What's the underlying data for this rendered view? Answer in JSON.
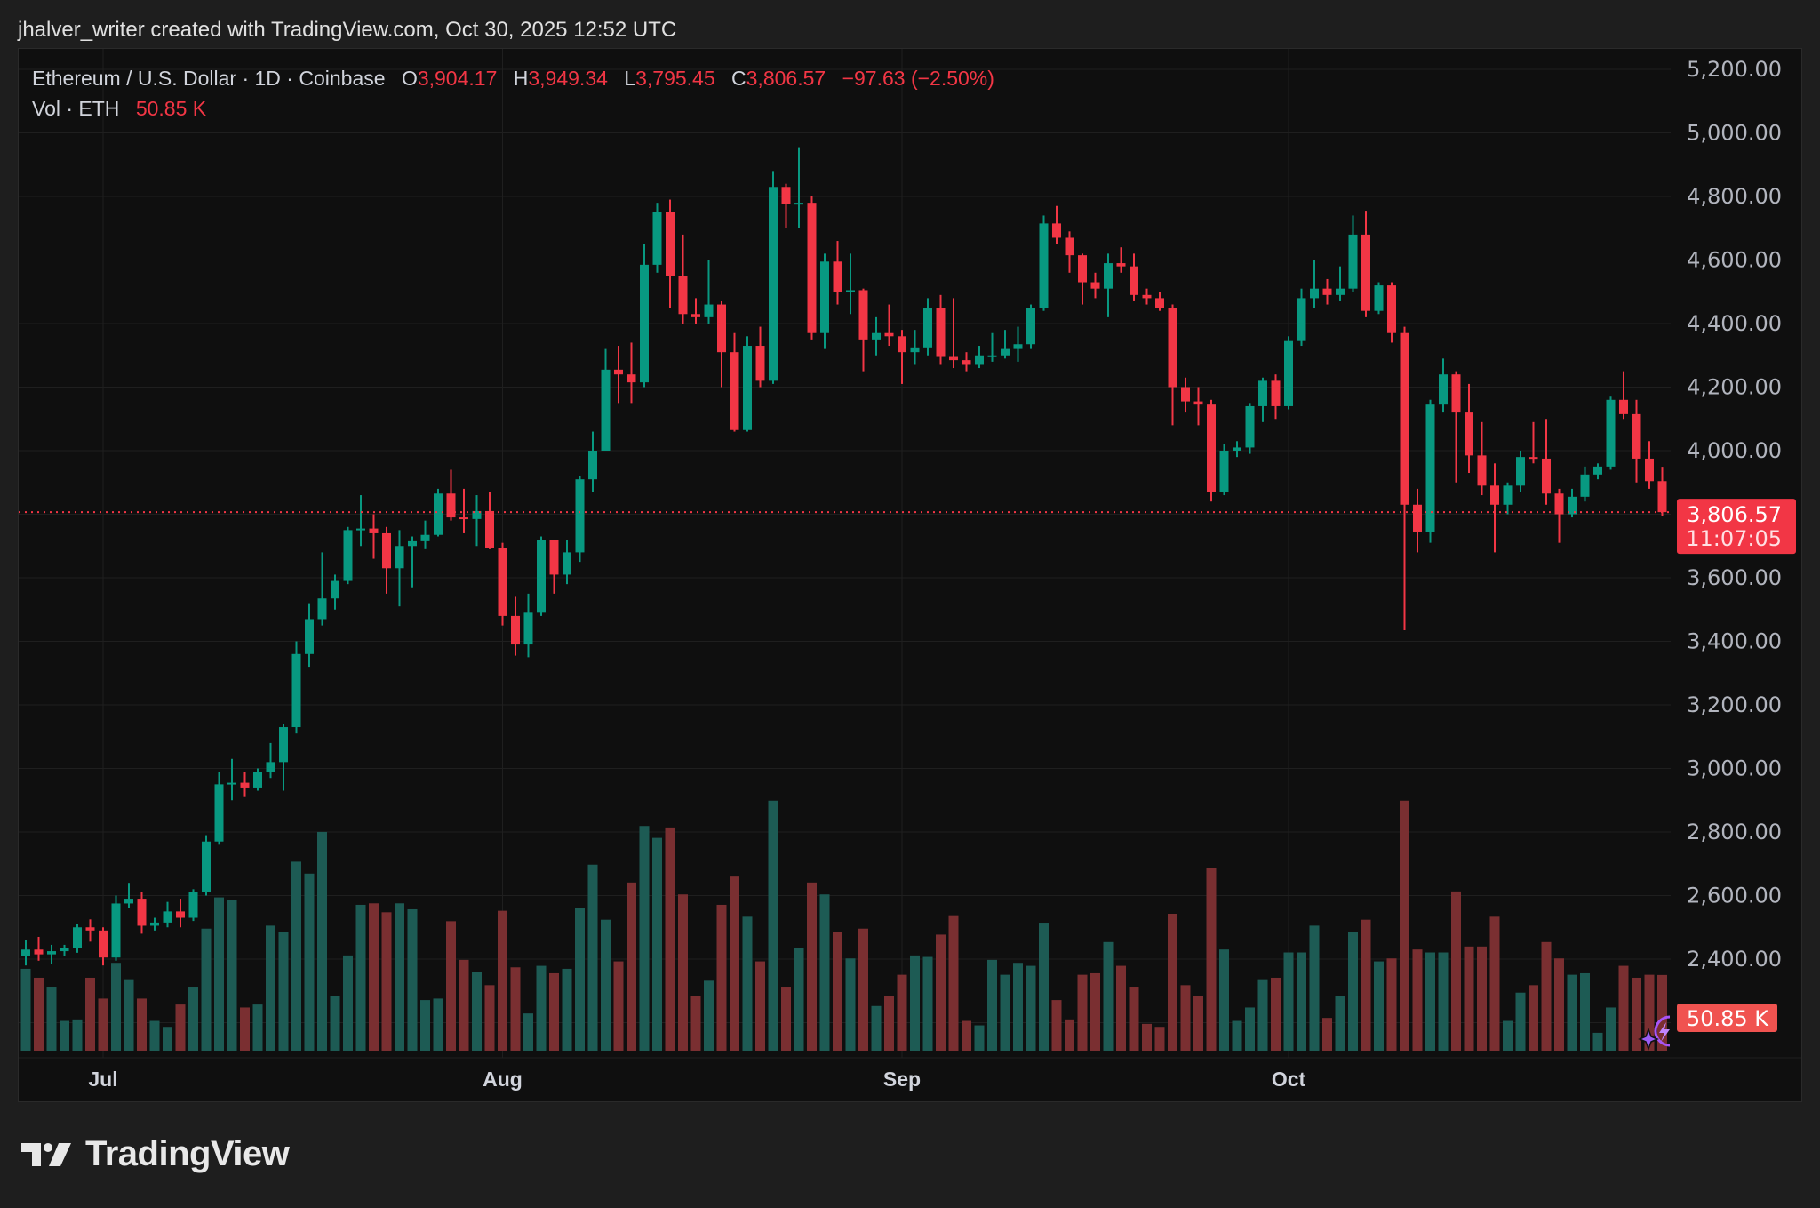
{
  "credit": "jhalver_writer created with TradingView.com, Oct 30, 2025 12:52 UTC",
  "legend": {
    "symbol": "Ethereum / U.S. Dollar · 1D · Coinbase",
    "o_label": "O",
    "o_value": "3,904.17",
    "h_label": "H",
    "h_value": "3,949.34",
    "l_label": "L",
    "l_value": "3,795.45",
    "c_label": "C",
    "c_value": "3,806.57",
    "change": "−97.63 (−2.50%)",
    "vol_label": "Vol · ETH",
    "vol_value": "50.85 K"
  },
  "footer": {
    "brand": "TradingView"
  },
  "colors": {
    "up": "#089981",
    "down": "#f23645",
    "vol_up": "#1d5b54",
    "vol_down": "#7a2f31",
    "background": "#0f0f0f",
    "assistant_icon": "#9b5cf6"
  },
  "chart_data": {
    "type": "candlestick",
    "symbol": "ETH/USD",
    "interval": "1D",
    "ylim": [
      2200,
      5200
    ],
    "y_ticks": [
      2200,
      2400,
      2600,
      2800,
      3000,
      3200,
      3400,
      3600,
      3800,
      4000,
      4200,
      4400,
      4600,
      4800,
      5000,
      5200
    ],
    "x_ticks": [
      {
        "date": "2025-07-01",
        "label": "Jul"
      },
      {
        "date": "2025-08-01",
        "label": "Aug"
      },
      {
        "date": "2025-09-01",
        "label": "Sep"
      },
      {
        "date": "2025-10-01",
        "label": "Oct"
      }
    ],
    "grid": true,
    "last_price": {
      "value": "3,806.57",
      "countdown": "11:07:05"
    },
    "last_volume": "50.85 K",
    "columns": [
      "date",
      "open",
      "high",
      "low",
      "close",
      "volume_k"
    ],
    "candles": [
      [
        "2025-06-25",
        2410,
        2460,
        2380,
        2430,
        55
      ],
      [
        "2025-06-26",
        2430,
        2470,
        2395,
        2415,
        49
      ],
      [
        "2025-06-27",
        2415,
        2445,
        2385,
        2425,
        43
      ],
      [
        "2025-06-28",
        2425,
        2445,
        2410,
        2435,
        20
      ],
      [
        "2025-06-29",
        2435,
        2510,
        2420,
        2500,
        21
      ],
      [
        "2025-06-30",
        2500,
        2525,
        2455,
        2490,
        49
      ],
      [
        "2025-07-01",
        2490,
        2500,
        2380,
        2405,
        35
      ],
      [
        "2025-07-02",
        2405,
        2600,
        2395,
        2575,
        59
      ],
      [
        "2025-07-03",
        2575,
        2640,
        2560,
        2590,
        48
      ],
      [
        "2025-07-04",
        2590,
        2610,
        2480,
        2505,
        35
      ],
      [
        "2025-07-05",
        2505,
        2530,
        2490,
        2515,
        20
      ],
      [
        "2025-07-06",
        2515,
        2580,
        2500,
        2550,
        16
      ],
      [
        "2025-07-07",
        2550,
        2590,
        2500,
        2530,
        31
      ],
      [
        "2025-07-08",
        2530,
        2620,
        2520,
        2610,
        43
      ],
      [
        "2025-07-09",
        2610,
        2790,
        2600,
        2770,
        82
      ],
      [
        "2025-07-10",
        2770,
        2990,
        2760,
        2950,
        103
      ],
      [
        "2025-07-11",
        2950,
        3030,
        2900,
        2955,
        101
      ],
      [
        "2025-07-12",
        2955,
        2990,
        2910,
        2940,
        29
      ],
      [
        "2025-07-13",
        2940,
        3000,
        2930,
        2990,
        31
      ],
      [
        "2025-07-14",
        2990,
        3080,
        2970,
        3020,
        84
      ],
      [
        "2025-07-15",
        3020,
        3140,
        2930,
        3130,
        80
      ],
      [
        "2025-07-16",
        3130,
        3400,
        3110,
        3360,
        127
      ],
      [
        "2025-07-17",
        3360,
        3520,
        3320,
        3470,
        119
      ],
      [
        "2025-07-18",
        3470,
        3680,
        3450,
        3535,
        147
      ],
      [
        "2025-07-19",
        3535,
        3610,
        3500,
        3590,
        37
      ],
      [
        "2025-07-20",
        3590,
        3760,
        3580,
        3750,
        64
      ],
      [
        "2025-07-21",
        3750,
        3860,
        3700,
        3755,
        98
      ],
      [
        "2025-07-22",
        3755,
        3800,
        3660,
        3740,
        99
      ],
      [
        "2025-07-23",
        3740,
        3760,
        3550,
        3630,
        93
      ],
      [
        "2025-07-24",
        3630,
        3750,
        3510,
        3700,
        99
      ],
      [
        "2025-07-25",
        3700,
        3730,
        3570,
        3715,
        95
      ],
      [
        "2025-07-26",
        3715,
        3780,
        3690,
        3735,
        34
      ],
      [
        "2025-07-27",
        3735,
        3880,
        3730,
        3865,
        35
      ],
      [
        "2025-07-28",
        3865,
        3940,
        3780,
        3790,
        87
      ],
      [
        "2025-07-29",
        3790,
        3880,
        3740,
        3785,
        61
      ],
      [
        "2025-07-30",
        3785,
        3860,
        3700,
        3810,
        53
      ],
      [
        "2025-07-31",
        3810,
        3870,
        3690,
        3695,
        44
      ],
      [
        "2025-08-01",
        3695,
        3710,
        3450,
        3480,
        94
      ],
      [
        "2025-08-02",
        3480,
        3540,
        3355,
        3390,
        56
      ],
      [
        "2025-08-03",
        3390,
        3550,
        3350,
        3490,
        25
      ],
      [
        "2025-08-04",
        3490,
        3730,
        3480,
        3720,
        57
      ],
      [
        "2025-08-05",
        3720,
        3720,
        3550,
        3610,
        52
      ],
      [
        "2025-08-06",
        3610,
        3720,
        3580,
        3680,
        55
      ],
      [
        "2025-08-07",
        3680,
        3920,
        3650,
        3910,
        96
      ],
      [
        "2025-08-08",
        3910,
        4060,
        3870,
        4000,
        125
      ],
      [
        "2025-08-09",
        4000,
        4320,
        4000,
        4255,
        88
      ],
      [
        "2025-08-10",
        4255,
        4330,
        4150,
        4240,
        60
      ],
      [
        "2025-08-11",
        4240,
        4340,
        4150,
        4215,
        113
      ],
      [
        "2025-08-12",
        4215,
        4650,
        4200,
        4585,
        151
      ],
      [
        "2025-08-13",
        4585,
        4780,
        4560,
        4750,
        143
      ],
      [
        "2025-08-14",
        4750,
        4790,
        4450,
        4550,
        150
      ],
      [
        "2025-08-15",
        4550,
        4680,
        4400,
        4430,
        105
      ],
      [
        "2025-08-16",
        4430,
        4480,
        4400,
        4420,
        37
      ],
      [
        "2025-08-17",
        4420,
        4600,
        4400,
        4460,
        47
      ],
      [
        "2025-08-18",
        4460,
        4470,
        4200,
        4310,
        98
      ],
      [
        "2025-08-19",
        4310,
        4370,
        4060,
        4065,
        117
      ],
      [
        "2025-08-20",
        4065,
        4360,
        4060,
        4330,
        90
      ],
      [
        "2025-08-21",
        4330,
        4390,
        4200,
        4220,
        60
      ],
      [
        "2025-08-22",
        4220,
        4880,
        4210,
        4830,
        168
      ],
      [
        "2025-08-23",
        4830,
        4840,
        4700,
        4775,
        43
      ],
      [
        "2025-08-24",
        4775,
        4955,
        4700,
        4780,
        69
      ],
      [
        "2025-08-25",
        4780,
        4800,
        4350,
        4370,
        113
      ],
      [
        "2025-08-26",
        4370,
        4620,
        4320,
        4595,
        105
      ],
      [
        "2025-08-27",
        4595,
        4660,
        4460,
        4500,
        80
      ],
      [
        "2025-08-28",
        4500,
        4620,
        4430,
        4505,
        62
      ],
      [
        "2025-08-29",
        4505,
        4510,
        4250,
        4350,
        82
      ],
      [
        "2025-08-30",
        4350,
        4420,
        4300,
        4370,
        30
      ],
      [
        "2025-08-31",
        4370,
        4460,
        4330,
        4360,
        37
      ],
      [
        "2025-09-01",
        4360,
        4380,
        4210,
        4310,
        51
      ],
      [
        "2025-09-02",
        4310,
        4380,
        4270,
        4325,
        64
      ],
      [
        "2025-09-03",
        4325,
        4480,
        4300,
        4450,
        63
      ],
      [
        "2025-09-04",
        4450,
        4490,
        4270,
        4295,
        78
      ],
      [
        "2025-09-05",
        4295,
        4480,
        4260,
        4285,
        91
      ],
      [
        "2025-09-06",
        4285,
        4310,
        4250,
        4270,
        20
      ],
      [
        "2025-09-07",
        4270,
        4330,
        4260,
        4300,
        17
      ],
      [
        "2025-09-08",
        4300,
        4370,
        4280,
        4300,
        61
      ],
      [
        "2025-09-09",
        4300,
        4380,
        4290,
        4320,
        51
      ],
      [
        "2025-09-10",
        4320,
        4390,
        4280,
        4335,
        59
      ],
      [
        "2025-09-11",
        4335,
        4460,
        4320,
        4450,
        57
      ],
      [
        "2025-09-12",
        4450,
        4740,
        4440,
        4715,
        86
      ],
      [
        "2025-09-13",
        4715,
        4770,
        4650,
        4670,
        34
      ],
      [
        "2025-09-14",
        4670,
        4690,
        4560,
        4615,
        21
      ],
      [
        "2025-09-15",
        4615,
        4620,
        4460,
        4530,
        51
      ],
      [
        "2025-09-16",
        4530,
        4560,
        4480,
        4510,
        52
      ],
      [
        "2025-09-17",
        4510,
        4620,
        4420,
        4590,
        73
      ],
      [
        "2025-09-18",
        4590,
        4640,
        4560,
        4580,
        57
      ],
      [
        "2025-09-19",
        4580,
        4620,
        4470,
        4490,
        43
      ],
      [
        "2025-09-20",
        4490,
        4510,
        4460,
        4480,
        18
      ],
      [
        "2025-09-21",
        4480,
        4500,
        4440,
        4450,
        16
      ],
      [
        "2025-09-22",
        4450,
        4460,
        4080,
        4200,
        92
      ],
      [
        "2025-09-23",
        4200,
        4230,
        4120,
        4155,
        44
      ],
      [
        "2025-09-24",
        4155,
        4200,
        4080,
        4145,
        37
      ],
      [
        "2025-09-25",
        4145,
        4160,
        3840,
        3870,
        123
      ],
      [
        "2025-09-26",
        3870,
        4020,
        3860,
        4000,
        68
      ],
      [
        "2025-09-27",
        4000,
        4030,
        3980,
        4010,
        20
      ],
      [
        "2025-09-28",
        4010,
        4150,
        3990,
        4140,
        29
      ],
      [
        "2025-09-29",
        4140,
        4230,
        4090,
        4220,
        48
      ],
      [
        "2025-09-30",
        4220,
        4240,
        4100,
        4140,
        49
      ],
      [
        "2025-10-01",
        4140,
        4360,
        4130,
        4345,
        66
      ],
      [
        "2025-10-02",
        4345,
        4510,
        4330,
        4480,
        66
      ],
      [
        "2025-10-03",
        4480,
        4600,
        4450,
        4510,
        84
      ],
      [
        "2025-10-04",
        4510,
        4540,
        4460,
        4490,
        22
      ],
      [
        "2025-10-05",
        4490,
        4580,
        4470,
        4510,
        37
      ],
      [
        "2025-10-06",
        4510,
        4740,
        4500,
        4680,
        80
      ],
      [
        "2025-10-07",
        4680,
        4755,
        4420,
        4440,
        88
      ],
      [
        "2025-10-08",
        4440,
        4530,
        4430,
        4520,
        60
      ],
      [
        "2025-10-09",
        4520,
        4530,
        4340,
        4370,
        62
      ],
      [
        "2025-10-10",
        4370,
        4390,
        3435,
        3830,
        168
      ],
      [
        "2025-10-11",
        3830,
        3880,
        3680,
        3745,
        68
      ],
      [
        "2025-10-12",
        3745,
        4160,
        3710,
        4145,
        66
      ],
      [
        "2025-10-13",
        4145,
        4290,
        4120,
        4240,
        66
      ],
      [
        "2025-10-14",
        4240,
        4250,
        3900,
        4120,
        107
      ],
      [
        "2025-10-15",
        4120,
        4210,
        3930,
        3985,
        70
      ],
      [
        "2025-10-16",
        3985,
        4090,
        3860,
        3890,
        70
      ],
      [
        "2025-10-17",
        3890,
        3960,
        3680,
        3830,
        90
      ],
      [
        "2025-10-18",
        3830,
        3900,
        3800,
        3890,
        20
      ],
      [
        "2025-10-19",
        3890,
        4000,
        3870,
        3980,
        39
      ],
      [
        "2025-10-20",
        3980,
        4090,
        3960,
        3975,
        44
      ],
      [
        "2025-10-21",
        3975,
        4100,
        3830,
        3865,
        73
      ],
      [
        "2025-10-22",
        3865,
        3880,
        3710,
        3800,
        62
      ],
      [
        "2025-10-23",
        3800,
        3880,
        3790,
        3855,
        51
      ],
      [
        "2025-10-24",
        3855,
        3950,
        3840,
        3925,
        52
      ],
      [
        "2025-10-25",
        3925,
        3960,
        3910,
        3950,
        12
      ],
      [
        "2025-10-26",
        3950,
        4170,
        3940,
        4160,
        29
      ],
      [
        "2025-10-27",
        4160,
        4250,
        4100,
        4115,
        57
      ],
      [
        "2025-10-28",
        4115,
        4160,
        3900,
        3975,
        49
      ],
      [
        "2025-10-29",
        3975,
        4030,
        3880,
        3904.17,
        51
      ],
      [
        "2025-10-30",
        3904.17,
        3949.34,
        3795.45,
        3806.57,
        50.85
      ]
    ]
  }
}
